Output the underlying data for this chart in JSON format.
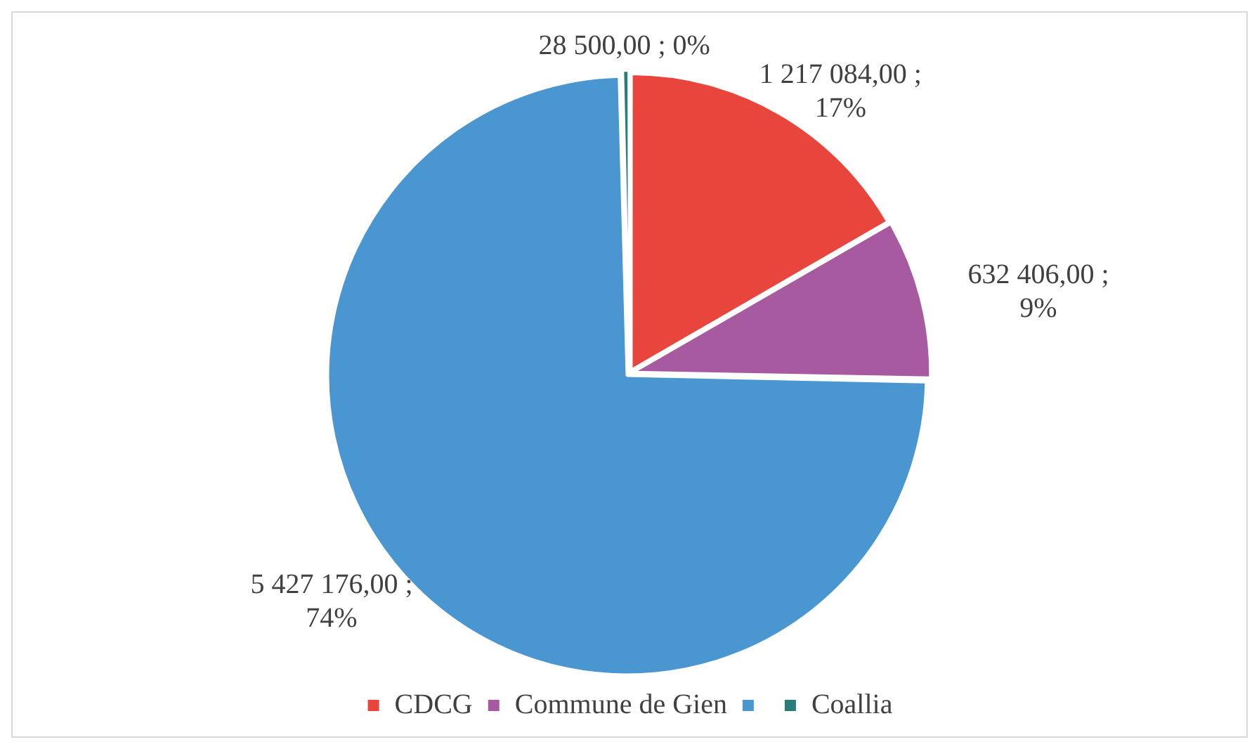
{
  "chart_data": {
    "type": "pie",
    "categories": [
      "CDCG",
      "Commune de Gien",
      null,
      "Coallia"
    ],
    "values": [
      1217084,
      632406,
      5427176,
      28500
    ],
    "colors": [
      "#e8453c",
      "#a75a9f",
      "#4a96d0",
      "#2a7b7a"
    ],
    "value_labels": [
      "1 217 084,00 ; 17%",
      "632 406,00 ; 9%",
      "5 427 176,00 ; 74%",
      "28 500,00 ; 0%"
    ],
    "legend": "bottom"
  }
}
